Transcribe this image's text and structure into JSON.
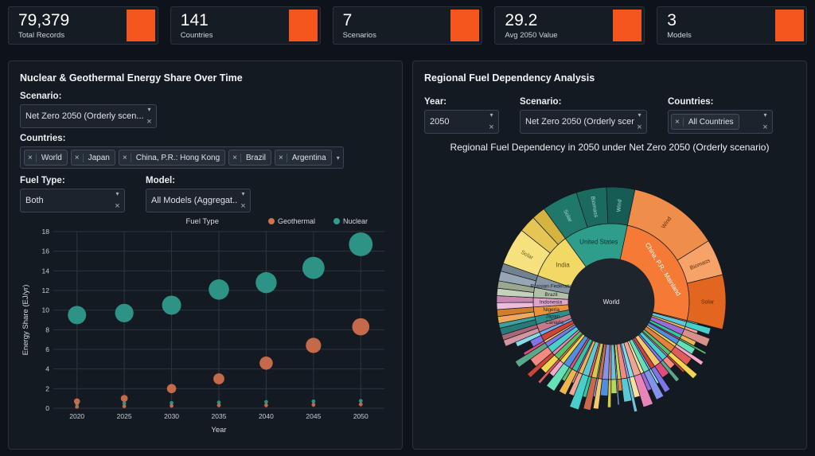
{
  "theme": {
    "accent": "#f4561d",
    "panel_bg": "#141a21",
    "grid": "#2b343e"
  },
  "stats": [
    {
      "value": "79,379",
      "label": "Total Records"
    },
    {
      "value": "141",
      "label": "Countries"
    },
    {
      "value": "7",
      "label": "Scenarios"
    },
    {
      "value": "29.2",
      "label": "Avg 2050 Value"
    },
    {
      "value": "3",
      "label": "Models"
    }
  ],
  "left_panel": {
    "title": "Nuclear & Geothermal Energy Share Over Time",
    "scenario_label": "Scenario:",
    "scenario_value": "Net Zero 2050 (Orderly scen...",
    "countries_label": "Countries:",
    "country_chips": [
      "World",
      "Japan",
      "China, P.R.: Hong Kong",
      "Brazil",
      "Argentina"
    ],
    "fuel_type_label": "Fuel Type:",
    "fuel_type_value": "Both",
    "model_label": "Model:",
    "model_value": "All Models (Aggregat..."
  },
  "right_panel": {
    "title": "Regional Fuel Dependency Analysis",
    "year_label": "Year:",
    "year_value": "2050",
    "scenario_label": "Scenario:",
    "scenario_value": "Net Zero 2050 (Orderly scen...",
    "countries_label": "Countries:",
    "countries_value": "All Countries",
    "chart_title": "Regional Fuel Dependency in 2050 under Net Zero 2050 (Orderly scenario)"
  },
  "chart_data": [
    {
      "type": "scatter",
      "name": "bubble-chart",
      "xlabel": "Year",
      "ylabel": "Energy Share (EJ/yr)",
      "legend_title": "Fuel Type",
      "x": [
        2020,
        2025,
        2030,
        2035,
        2040,
        2045,
        2050
      ],
      "xlim": [
        2017.5,
        2052.5
      ],
      "ylim": [
        0,
        18
      ],
      "yticks": [
        0,
        2,
        4,
        6,
        8,
        10,
        12,
        14,
        16,
        18
      ],
      "series": [
        {
          "name": "Geothermal",
          "color": "#d4704d",
          "values": [
            0.7,
            1.0,
            2.0,
            3.0,
            4.6,
            6.4,
            8.3
          ]
        },
        {
          "name": "Nuclear",
          "color": "#2f9d8e",
          "values": [
            9.5,
            9.7,
            10.5,
            12.1,
            12.8,
            14.3,
            16.7
          ]
        }
      ],
      "minor_points": [
        {
          "x": 2020,
          "y": 0.45,
          "series": "Nuclear"
        },
        {
          "x": 2020,
          "y": 0.15,
          "series": "Geothermal"
        },
        {
          "x": 2025,
          "y": 0.5,
          "series": "Nuclear"
        },
        {
          "x": 2025,
          "y": 0.2,
          "series": "Geothermal"
        },
        {
          "x": 2030,
          "y": 0.55,
          "series": "Nuclear"
        },
        {
          "x": 2030,
          "y": 0.25,
          "series": "Geothermal"
        },
        {
          "x": 2035,
          "y": 0.6,
          "series": "Nuclear"
        },
        {
          "x": 2035,
          "y": 0.3,
          "series": "Geothermal"
        },
        {
          "x": 2040,
          "y": 0.65,
          "series": "Nuclear"
        },
        {
          "x": 2040,
          "y": 0.3,
          "series": "Geothermal"
        },
        {
          "x": 2045,
          "y": 0.7,
          "series": "Nuclear"
        },
        {
          "x": 2045,
          "y": 0.35,
          "series": "Geothermal"
        },
        {
          "x": 2050,
          "y": 0.75,
          "series": "Nuclear"
        },
        {
          "x": 2050,
          "y": 0.4,
          "series": "Geothermal"
        }
      ]
    },
    {
      "type": "sunburst",
      "name": "sunburst-chart",
      "title": "Regional Fuel Dependency in 2050 under Net Zero 2050 (Orderly scenario)",
      "center_label": "World",
      "angle_unit": "degrees_clockwise_from_top",
      "start_angle": 247,
      "segments": [
        {
          "name": "Canada",
          "value": 6,
          "color": "#c47a88",
          "label": true,
          "children": [
            {
              "name": "",
              "value": 0.55,
              "color": "#d395a1"
            },
            {
              "name": "",
              "value": 0.45,
              "color": "#a96674"
            }
          ]
        },
        {
          "name": "Japan",
          "value": 6,
          "color": "#2f8f8d",
          "label": true,
          "children": [
            {
              "name": "",
              "value": 0.6,
              "color": "#267a78"
            },
            {
              "name": "",
              "value": 0.4,
              "color": "#3aa3a0"
            }
          ]
        },
        {
          "name": "Nigeria",
          "value": 7,
          "color": "#e8923c",
          "label": true,
          "children": [
            {
              "name": "",
              "value": 0.5,
              "color": "#f0a85c"
            },
            {
              "name": "",
              "value": 0.5,
              "color": "#d07e2c"
            }
          ]
        },
        {
          "name": "Indonesia",
          "value": 7,
          "color": "#e2a3cb",
          "label": true,
          "children": [
            {
              "name": "",
              "value": 0.5,
              "color": "#eebbda"
            },
            {
              "name": "",
              "value": 0.5,
              "color": "#c988b2"
            }
          ]
        },
        {
          "name": "Brazil",
          "value": 7.5,
          "color": "#b3bfa6",
          "label": true,
          "children": [
            {
              "name": "",
              "value": 0.5,
              "color": "#c5d1b8"
            },
            {
              "name": "",
              "value": 0.5,
              "color": "#9aa88e"
            }
          ]
        },
        {
          "name": "Russian Federation",
          "value": 9,
          "color": "#8795a4",
          "label": true,
          "children": [
            {
              "name": "",
              "value": 0.55,
              "color": "#97a6b6"
            },
            {
              "name": "",
              "value": 0.45,
              "color": "#74828f"
            }
          ]
        },
        {
          "name": "India",
          "value": 34.5,
          "color": "#f2d966",
          "label": true,
          "text_color": "#5f501a",
          "children": [
            {
              "name": "Solar",
              "value": 0.55,
              "color": "#f6e17e",
              "label": true,
              "text_color": "#6e5c20"
            },
            {
              "name": "Biomass",
              "value": 0.25,
              "color": "#e5c654"
            },
            {
              "name": "Wind",
              "value": 0.2,
              "color": "#d4b340"
            }
          ]
        },
        {
          "name": "United States",
          "value": 48,
          "color": "#2e9d8c",
          "label": true,
          "text_color": "#0f332d",
          "children": [
            {
              "name": "Solar",
              "value": 0.38,
              "color": "#20786b",
              "label": true,
              "text_color": "#a7d6cb"
            },
            {
              "name": "Biomass",
              "value": 0.32,
              "color": "#1b6a60",
              "label": true,
              "text_color": "#a7d6cb"
            },
            {
              "name": "Wind",
              "value": 0.3,
              "color": "#175c54",
              "label": true,
              "text_color": "#a7d6cb"
            }
          ]
        },
        {
          "name": "China, P.R.: Mainland",
          "value": 92,
          "color": "#f47a35",
          "label": true,
          "tangential": true,
          "text_color": "#ffffff",
          "children": [
            {
              "name": "Wind",
              "value": 0.5,
              "color": "#ef8d4a",
              "label": true,
              "text_color": "#5b2c0c"
            },
            {
              "name": "Biomass",
              "value": 0.2,
              "color": "#f7a268",
              "label": true,
              "text_color": "#5b2c0c"
            },
            {
              "name": "Solar",
              "value": 0.3,
              "color": "#e2661f",
              "label": true,
              "text_color": "#5b2c0c"
            }
          ]
        }
      ],
      "others": {
        "value": 143,
        "count": 46,
        "palette": [
          "#e05c5c",
          "#5bc8d6",
          "#f0b44e",
          "#9b6bd6",
          "#35c4a2",
          "#e04c7c",
          "#4f8fdd",
          "#f1d54f",
          "#e6803c",
          "#58c06a",
          "#e884b8",
          "#47cfc9",
          "#7f74e8",
          "#f3c96e",
          "#cf4436",
          "#74a9f0",
          "#66e0b8",
          "#f5e0a0",
          "#f0a390",
          "#84dce8",
          "#a89bf2",
          "#f28a80",
          "#b8d85c",
          "#f2a8c8",
          "#6fc4dd",
          "#d8908a",
          "#8493e8",
          "#c86a4a",
          "#5aa888",
          "#d8c84e"
        ]
      }
    }
  ]
}
